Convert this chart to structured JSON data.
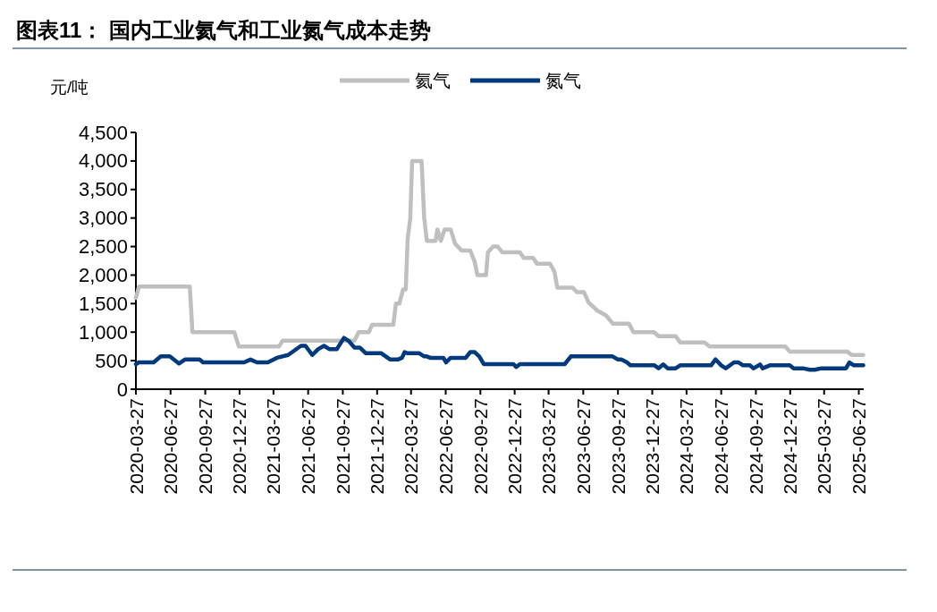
{
  "chart_data": {
    "type": "line",
    "title": "图表11：  国内工业氦气和工业氮气成本走势",
    "ylabel": "元/吨",
    "legend": "top",
    "xlim": [
      "2020-03-27",
      "2025-07-10"
    ],
    "xticks": [
      "2020-03-27",
      "2020-06-27",
      "2020-09-27",
      "2020-12-27",
      "2021-03-27",
      "2021-06-27",
      "2021-09-27",
      "2021-12-27",
      "2022-03-27",
      "2022-06-27",
      "2022-09-27",
      "2022-12-27",
      "2023-03-27",
      "2023-06-27",
      "2023-09-27",
      "2023-12-27",
      "2024-03-27",
      "2024-06-27",
      "2024-09-27",
      "2024-12-27",
      "2025-03-27",
      "2025-06-27"
    ],
    "ylim": [
      0,
      4500
    ],
    "yticks": [
      0,
      500,
      {
        "value": 1000,
        "label": "1,000"
      },
      {
        "value": 1500,
        "label": "1,500"
      },
      {
        "value": 2000,
        "label": "2,000"
      },
      {
        "value": 2500,
        "label": "2,500"
      },
      {
        "value": 3000,
        "label": "3,000"
      },
      {
        "value": 3500,
        "label": "3,500"
      },
      {
        "value": 4000,
        "label": "4,000"
      },
      {
        "value": 4500,
        "label": "4,500"
      }
    ],
    "series": [
      {
        "name": "氦气",
        "color": "#bfbfbf",
        "x": [
          "2020-03-27",
          "2020-04-04",
          "2020-08-17",
          "2020-08-24",
          "2020-12-13",
          "2020-12-25",
          "2021-04-11",
          "2021-04-20",
          "2021-10-28",
          "2021-11-08",
          "2021-12-05",
          "2021-12-14",
          "2022-02-08",
          "2022-02-15",
          "2022-02-24",
          "2022-03-06",
          "2022-03-13",
          "2022-03-18",
          "2022-03-25",
          "2022-03-30",
          "2022-04-24",
          "2022-05-01",
          "2022-05-08",
          "2022-05-31",
          "2022-06-05",
          "2022-06-14",
          "2022-06-24",
          "2022-07-10",
          "2022-07-22",
          "2022-08-08",
          "2022-08-31",
          "2022-09-12",
          "2022-09-19",
          "2022-10-12",
          "2022-10-17",
          "2022-10-31",
          "2022-11-12",
          "2022-11-24",
          "2023-01-10",
          "2023-01-20",
          "2023-02-14",
          "2023-02-24",
          "2023-03-31",
          "2023-04-12",
          "2023-04-19",
          "2023-05-30",
          "2023-06-10",
          "2023-06-29",
          "2023-07-11",
          "2023-08-03",
          "2023-08-27",
          "2023-09-13",
          "2023-10-26",
          "2023-11-07",
          "2024-01-01",
          "2024-01-13",
          "2024-02-27",
          "2024-03-10",
          "2024-05-14",
          "2024-05-27",
          "2024-12-14",
          "2024-12-26",
          "2025-05-27",
          "2025-06-08",
          "2025-07-09"
        ],
        "values": [
          1600,
          1800,
          1800,
          1000,
          1000,
          750,
          750,
          850,
          850,
          1000,
          1000,
          1130,
          1130,
          1500,
          1500,
          1750,
          1750,
          2630,
          3000,
          4000,
          4000,
          3000,
          2600,
          2600,
          2800,
          2600,
          2800,
          2800,
          2550,
          2430,
          2430,
          2230,
          2000,
          2000,
          2400,
          2500,
          2500,
          2400,
          2400,
          2300,
          2300,
          2200,
          2200,
          2050,
          1780,
          1780,
          1700,
          1700,
          1520,
          1380,
          1290,
          1150,
          1150,
          1000,
          1000,
          930,
          930,
          820,
          820,
          750,
          750,
          660,
          660,
          600,
          600
        ]
      },
      {
        "name": "氮气",
        "color": "#003a7d",
        "x": [
          "2020-03-27",
          "2020-04-04",
          "2020-05-13",
          "2020-06-01",
          "2020-06-25",
          "2020-07-19",
          "2020-08-04",
          "2020-09-12",
          "2020-09-21",
          "2021-01-08",
          "2021-01-25",
          "2021-02-11",
          "2021-03-12",
          "2021-04-05",
          "2021-05-05",
          "2021-06-08",
          "2021-06-20",
          "2021-07-08",
          "2021-07-23",
          "2021-08-08",
          "2021-08-23",
          "2021-09-11",
          "2021-09-30",
          "2021-10-12",
          "2021-10-28",
          "2021-11-11",
          "2021-11-27",
          "2022-01-07",
          "2022-01-31",
          "2022-02-20",
          "2022-03-03",
          "2022-03-10",
          "2022-03-18",
          "2022-04-18",
          "2022-05-01",
          "2022-05-08",
          "2022-05-17",
          "2022-06-21",
          "2022-06-28",
          "2022-07-10",
          "2022-08-19",
          "2022-08-31",
          "2022-09-12",
          "2022-09-24",
          "2022-10-06",
          "2022-12-24",
          "2022-12-31",
          "2023-01-10",
          "2023-05-09",
          "2023-05-25",
          "2023-09-13",
          "2023-09-27",
          "2023-10-06",
          "2023-10-21",
          "2023-10-30",
          "2024-01-01",
          "2024-01-13",
          "2024-01-25",
          "2024-02-06",
          "2024-02-27",
          "2024-03-10",
          "2024-05-31",
          "2024-06-12",
          "2024-06-27",
          "2024-07-09",
          "2024-07-31",
          "2024-08-12",
          "2024-08-24",
          "2024-09-11",
          "2024-09-21",
          "2024-10-08",
          "2024-10-15",
          "2024-11-03",
          "2024-12-26",
          "2025-01-05",
          "2025-01-30",
          "2025-02-17",
          "2025-03-02",
          "2025-03-20",
          "2025-05-24",
          "2025-06-02",
          "2025-06-14",
          "2025-07-09"
        ],
        "values": [
          440,
          470,
          470,
          575,
          575,
          450,
          520,
          520,
          470,
          470,
          520,
          470,
          470,
          550,
          600,
          760,
          760,
          600,
          700,
          760,
          700,
          700,
          900,
          850,
          730,
          730,
          630,
          630,
          520,
          520,
          550,
          650,
          630,
          630,
          575,
          575,
          550,
          550,
          470,
          550,
          550,
          650,
          650,
          575,
          440,
          440,
          390,
          440,
          440,
          575,
          575,
          520,
          520,
          470,
          420,
          420,
          366,
          434,
          366,
          366,
          418,
          418,
          522,
          418,
          366,
          470,
          470,
          418,
          418,
          366,
          434,
          366,
          418,
          418,
          366,
          366,
          340,
          340,
          366,
          366,
          470,
          418,
          418
        ]
      }
    ]
  }
}
